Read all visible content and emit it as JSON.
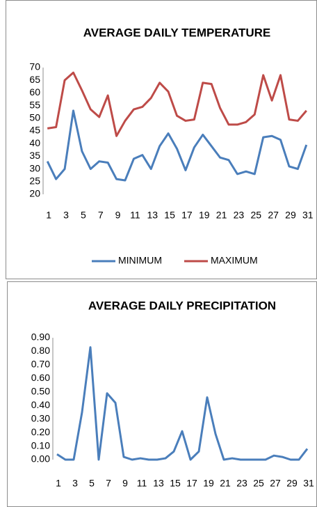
{
  "chart_data": [
    {
      "type": "line",
      "title": "AVERAGE DAILY TEMPERATURE",
      "categories": [
        1,
        null,
        3,
        null,
        5,
        null,
        7,
        null,
        9,
        null,
        11,
        null,
        13,
        null,
        15,
        null,
        17,
        null,
        19,
        null,
        21,
        null,
        23,
        null,
        25,
        null,
        27,
        null,
        29,
        null,
        31
      ],
      "series": [
        {
          "name": "MINIMUM",
          "color": "#4a7ebb",
          "values": [
            33,
            26,
            30,
            53,
            37,
            30,
            33,
            32.5,
            26,
            25.5,
            34,
            35.5,
            30,
            39,
            44,
            38,
            29.5,
            38.5,
            43.5,
            39,
            34.5,
            33.5,
            28,
            29,
            28,
            42.5,
            43,
            41.5,
            31,
            30,
            39.5
          ]
        },
        {
          "name": "MAXIMUM",
          "color": "#be4b48",
          "values": [
            46,
            46.5,
            65,
            68,
            61,
            53.5,
            50.5,
            59,
            43,
            49,
            53.5,
            54.5,
            58,
            64,
            60.5,
            51,
            49,
            49.5,
            64,
            63.5,
            54,
            47.5,
            47.5,
            48.5,
            51.5,
            67,
            57,
            67,
            49.5,
            49,
            53
          ]
        }
      ],
      "ylim": [
        20,
        70
      ],
      "yticks": [
        20,
        25,
        30,
        35,
        40,
        45,
        50,
        55,
        60,
        65,
        70
      ],
      "grid": true,
      "legend": "bottom"
    },
    {
      "type": "line",
      "title": "AVERAGE DAILY PRECIPITATION",
      "categories": [
        1,
        null,
        3,
        null,
        5,
        null,
        7,
        null,
        9,
        null,
        11,
        null,
        13,
        null,
        15,
        null,
        17,
        null,
        19,
        null,
        21,
        null,
        23,
        null,
        25,
        null,
        27,
        null,
        29,
        null,
        31
      ],
      "values": [
        0.04,
        0,
        0,
        0.35,
        0.83,
        0,
        0.49,
        0.42,
        0.02,
        0,
        0.01,
        0,
        0,
        0.01,
        0.06,
        0.21,
        0,
        0.06,
        0.46,
        0.19,
        0,
        0.01,
        0,
        0,
        0,
        0,
        0.03,
        0.02,
        0,
        0,
        0.08
      ],
      "color": "#4a7ebb",
      "ylim": [
        0,
        0.9
      ],
      "yticks": [
        {
          "value": 0,
          "label": "0.00"
        },
        {
          "value": 0.1,
          "label": "0.10"
        },
        {
          "value": 0.2,
          "label": "0.20"
        },
        {
          "value": 0.3,
          "label": "0.30"
        },
        {
          "value": 0.4,
          "label": "0.40"
        },
        {
          "value": 0.5,
          "label": "0.50"
        },
        {
          "value": 0.6,
          "label": "0.60"
        },
        {
          "value": 0.7,
          "label": "0.70"
        },
        {
          "value": 0.8,
          "label": "0.80"
        },
        {
          "value": 0.9,
          "label": "0.90"
        }
      ],
      "grid": true
    }
  ]
}
